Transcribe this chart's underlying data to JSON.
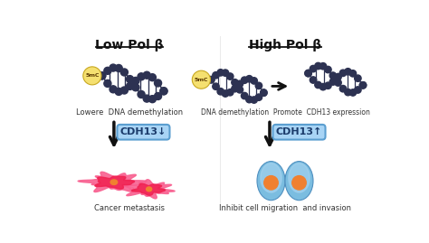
{
  "bg_color": "#ffffff",
  "title_left": "Low Pol β",
  "title_right": "High Pol β",
  "left_caption": "Lowere  DNA demethylation",
  "right_caption": "DNA demethylation  Promote  CDH13 expression",
  "left_box_label": "CDH13↓",
  "right_box_label": "CDH13↑",
  "left_bottom_label": "Cancer metastasis",
  "right_bottom_label": "Inhibit cell migration  and invasion",
  "dna_color": "#2d3252",
  "ball_color": "#2d3252",
  "methylation_fill": "#f5e070",
  "methylation_edge": "#c8a820",
  "methylation_text": "5mC",
  "box_fill": "#a8d4f5",
  "box_edge": "#5a9ed0",
  "arrow_color": "#111111",
  "cancer_outer": "#f02050",
  "cancer_inner": "#f86090",
  "cancer_nucleus": "#f08030",
  "cell_outer": "#7bbde0",
  "cell_inner": "#a8d4f0",
  "cell_nucleus": "#f08030"
}
